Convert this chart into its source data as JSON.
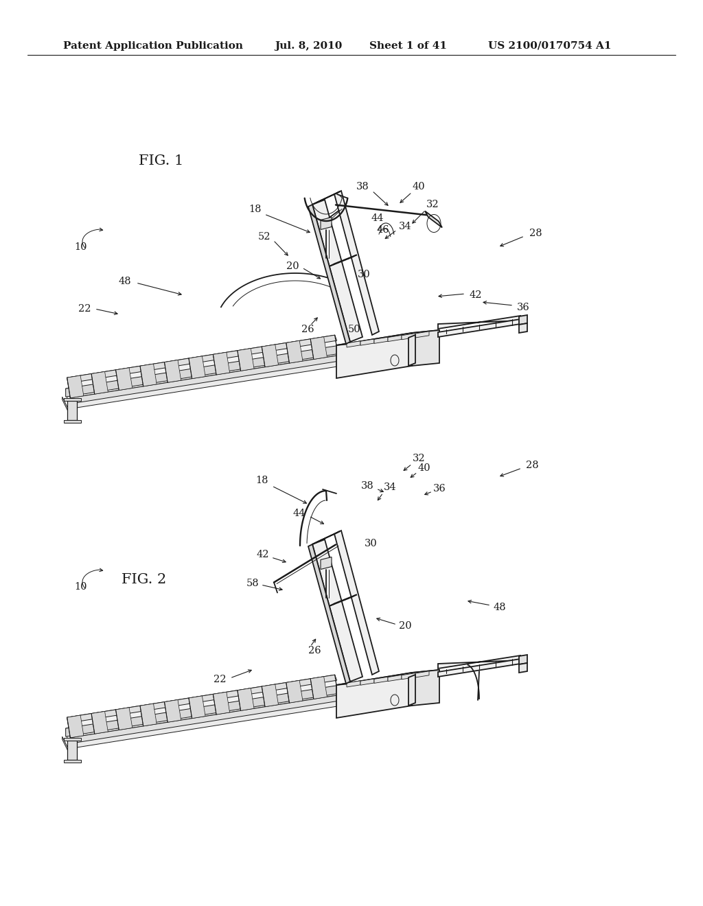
{
  "bg": "#ffffff",
  "lc": "#1a1a1a",
  "header1": "Patent Application Publication",
  "header2": "Jul. 8, 2010",
  "header3": "Sheet 1 of 41",
  "header4": "US 2100/0170754 A1",
  "fig1_label": "FIG. 1",
  "fig2_label": "FIG. 2",
  "lw": 1.3,
  "tlw": 0.7,
  "ref_fs": 10.5,
  "fig_label_fs": 15,
  "header_fs": 11
}
